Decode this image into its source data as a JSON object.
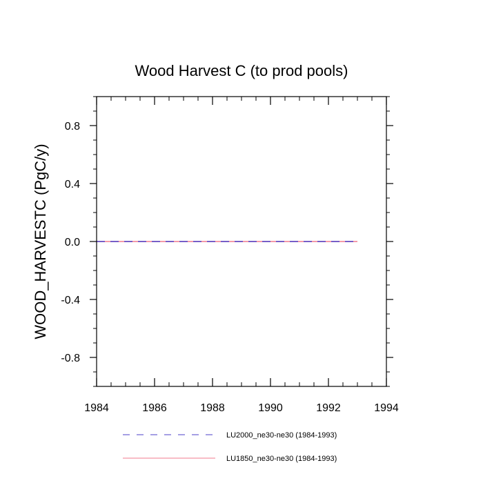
{
  "chart_data": {
    "type": "line",
    "title": "Wood Harvest C (to prod pools)",
    "xlabel": "",
    "ylabel": "WOOD_HARVESTC  (PgC/y)",
    "xlim": [
      1984,
      1994
    ],
    "ylim": [
      -1.0,
      1.0
    ],
    "x_ticks": [
      1984,
      1986,
      1988,
      1990,
      1992,
      1994
    ],
    "x_tick_labels": [
      "1984",
      "1986",
      "1988",
      "1990",
      "1992",
      "1994"
    ],
    "y_ticks": [
      -0.8,
      -0.4,
      0.0,
      0.4,
      0.8
    ],
    "y_tick_labels": [
      "-0.8",
      "-0.4",
      "0.0",
      "0.4",
      "0.8"
    ],
    "grid": false,
    "legend_position": "bottom",
    "x": [
      1984,
      1985,
      1986,
      1987,
      1988,
      1989,
      1990,
      1991,
      1992,
      1993
    ],
    "series": [
      {
        "name": "LU2000_ne30-ne30 (1984-1993)",
        "color": "#4b3fc8",
        "style": "dashed",
        "values": [
          0,
          0,
          0,
          0,
          0,
          0,
          0,
          0,
          0,
          0
        ]
      },
      {
        "name": "LU1850_ne30-ne30 (1984-1993)",
        "color": "#f0788c",
        "style": "solid",
        "values": [
          0,
          0,
          0,
          0,
          0,
          0,
          0,
          0,
          0,
          0
        ]
      }
    ]
  }
}
